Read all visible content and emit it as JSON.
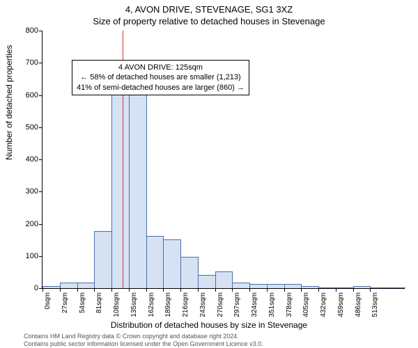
{
  "title": "4, AVON DRIVE, STEVENAGE, SG1 3XZ",
  "subtitle": "Size of property relative to detached houses in Stevenage",
  "ylabel": "Number of detached properties",
  "xlabel": "Distribution of detached houses by size in Stevenage",
  "footer_line1": "Contains HM Land Registry data © Crown copyright and database right 2024.",
  "footer_line2": "Contains public sector information licensed under the Open Government Licence v3.0.",
  "annotation": {
    "l1": "4 AVON DRIVE: 125sqm",
    "l2": "← 58% of detached houses are smaller (1,213)",
    "l3": "41% of semi-detached houses are larger (860) →"
  },
  "chart": {
    "type": "histogram",
    "ylim": [
      0,
      800
    ],
    "ytick_step": 100,
    "xtick_step": 27,
    "xmax": 539,
    "xtick_unit": "sqm",
    "bar_fill": "#d6e2f3",
    "bar_border": "#4a6ea9",
    "marker_x": 125,
    "marker_color": "#cc3333",
    "background": "#ffffff",
    "values": [
      5,
      15,
      15,
      175,
      615,
      655,
      160,
      150,
      95,
      40,
      50,
      15,
      10,
      10,
      10,
      5,
      0,
      0,
      5,
      0,
      0
    ]
  }
}
